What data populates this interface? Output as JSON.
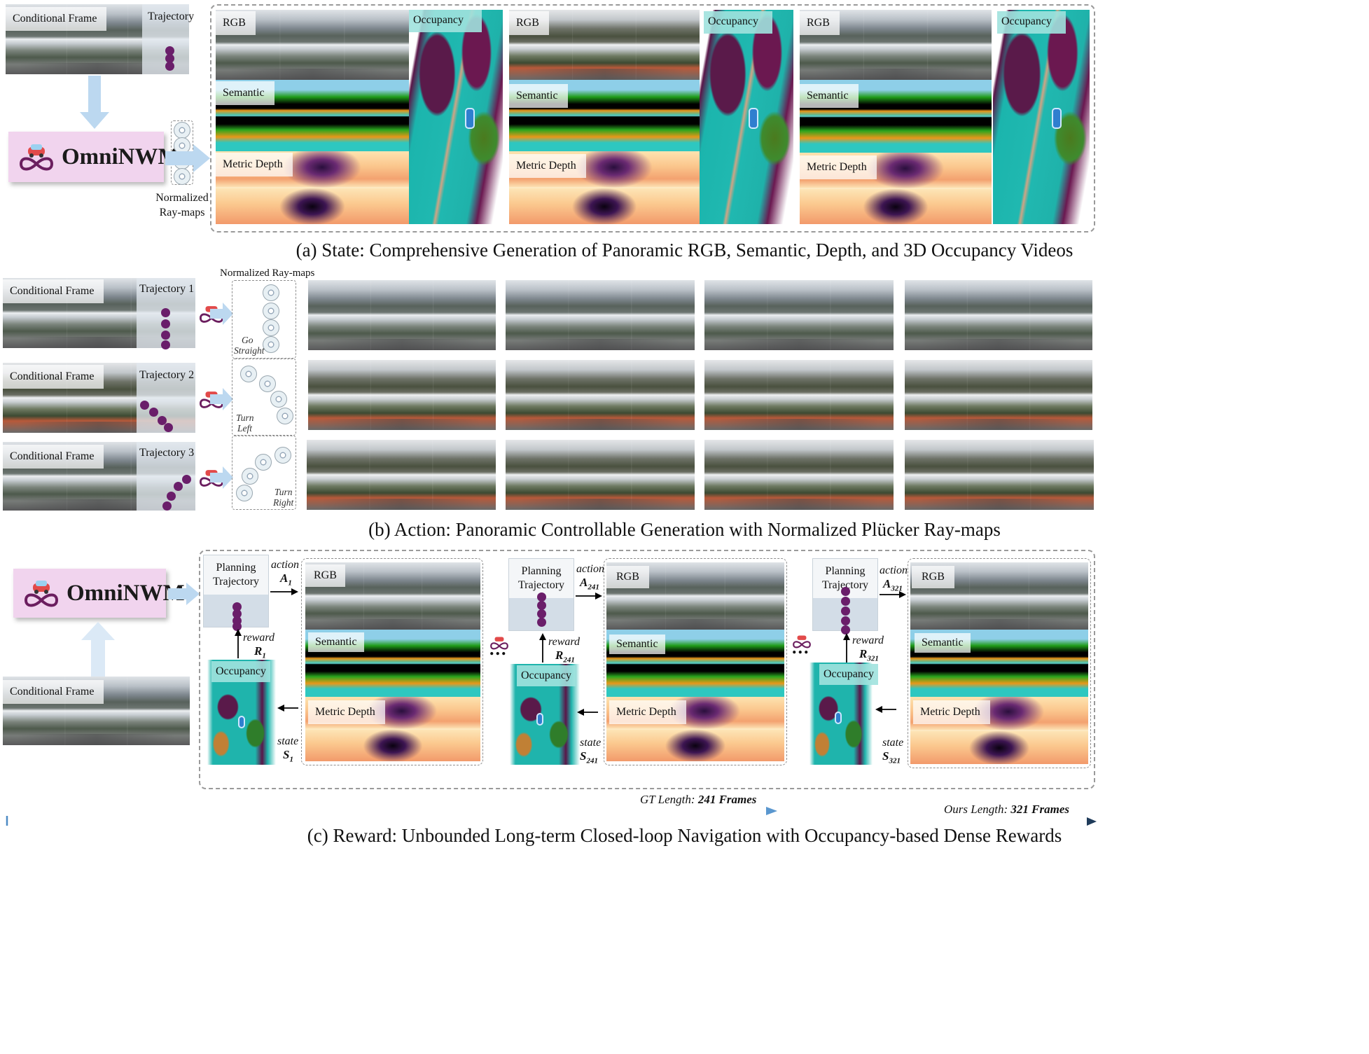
{
  "model_name": "OmniNWM",
  "section_a": {
    "caption": "(a) State: Comprehensive Generation of Panoramic RGB, Semantic, Depth, and 3D Occupancy Videos",
    "conditional_frame": "Conditional Frame",
    "trajectory": "Trajectory",
    "normalized_ray_maps": "Normalized\nRay-maps",
    "rgb": "RGB",
    "semantic": "Semantic",
    "metric_depth": "Metric Depth",
    "occupancy": "Occupancy"
  },
  "section_b": {
    "caption": "(b) Action: Panoramic Controllable Generation with Normalized Plücker Ray-maps",
    "ray_maps_title": "Normalized Ray-maps",
    "rows": [
      {
        "conditional_frame": "Conditional Frame",
        "trajectory": "Trajectory 1",
        "maneuver_line1": "Go",
        "maneuver_line2": "Straight"
      },
      {
        "conditional_frame": "Conditional Frame",
        "trajectory": "Trajectory 2",
        "maneuver_line1": "Turn",
        "maneuver_line2": "Left"
      },
      {
        "conditional_frame": "Conditional Frame",
        "trajectory": "Trajectory 3",
        "maneuver_line1": "Turn",
        "maneuver_line2": "Right"
      }
    ]
  },
  "section_c": {
    "caption": "(c) Reward: Unbounded Long-term Closed-loop Navigation with Occupancy-based Dense Rewards",
    "conditional_frame": "Conditional Frame",
    "planning_trajectory": "Planning\nTrajectory",
    "action_word": "action",
    "reward_word": "reward",
    "state_word": "state",
    "rgb": "RGB",
    "semantic": "Semantic",
    "metric_depth": "Metric Depth",
    "occupancy": "Occupancy",
    "steps": [
      {
        "action": "A",
        "reward": "R",
        "state": "S",
        "index": "1"
      },
      {
        "action": "A",
        "reward": "R",
        "state": "S",
        "index": "241"
      },
      {
        "action": "A",
        "reward": "R",
        "state": "S",
        "index": "321"
      }
    ],
    "ellipsis": "..."
  },
  "timeline": {
    "gt_label": "GT Length: ",
    "gt_value": "241 Frames",
    "ours_label": "Ours Length: ",
    "ours_value": "321 Frames"
  },
  "colors": {
    "omni_box": "#f1d4ee",
    "trajectory_dot": "#6a1e6a",
    "arrow_light_blue": "#bcd8f0",
    "timeline_start": "#6fa8dc",
    "timeline_end": "#1f3b5a"
  }
}
